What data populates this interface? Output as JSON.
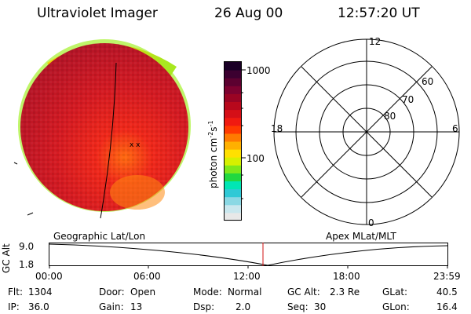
{
  "header": {
    "instrument": "Ultraviolet Imager",
    "date": "26 Aug 00",
    "time": "12:57:20 UT"
  },
  "colorbar": {
    "unit_label": "photon cm",
    "unit_exp1": "-2",
    "unit_mid": "s",
    "unit_exp2": "-1",
    "tick_high": "1000",
    "tick_low": "100",
    "colors": [
      "#e8e8e8",
      "#c9e7ee",
      "#8ad8e4",
      "#2fc9d6",
      "#00e6b4",
      "#22d840",
      "#7ee81a",
      "#d6f000",
      "#ffe000",
      "#ffb000",
      "#ff7a00",
      "#ff3a00",
      "#f01a10",
      "#d50f17",
      "#b8081c",
      "#9a0424",
      "#7d0230",
      "#5c0130",
      "#3c0030",
      "#1a0026"
    ]
  },
  "polar_plot": {
    "mlt_labels": [
      "12",
      "18",
      "6",
      "0"
    ],
    "lat_labels": [
      "60",
      "70",
      "80"
    ]
  },
  "timeline": {
    "left_title": "Geographic Lat/Lon",
    "right_title": "Apex MLat/MLT",
    "y_axis_label": "GC Alt",
    "y_ticks": [
      "9.0",
      "1.8"
    ],
    "x_ticks": [
      "00:00",
      "06:00",
      "12:00",
      "18:00",
      "23:59"
    ]
  },
  "info": {
    "flt_label": "Flt:",
    "flt_value": "1304",
    "ip_label": "IP:",
    "ip_value": "36.0",
    "door_label": "Door:",
    "door_value": "Open",
    "gain_label": "Gain:",
    "gain_value": "13",
    "mode_label": "Mode:",
    "mode_value": "Normal",
    "dsp_label": "Dsp:",
    "dsp_value": "2.0",
    "gcalt_label": "GC Alt:",
    "gcalt_value": "2.3 Re",
    "seq_label": "Seq:",
    "seq_value": "30",
    "glat_label": "GLat:",
    "glat_value": "40.5",
    "glon_label": "GLon:",
    "glon_value": "16.4"
  }
}
